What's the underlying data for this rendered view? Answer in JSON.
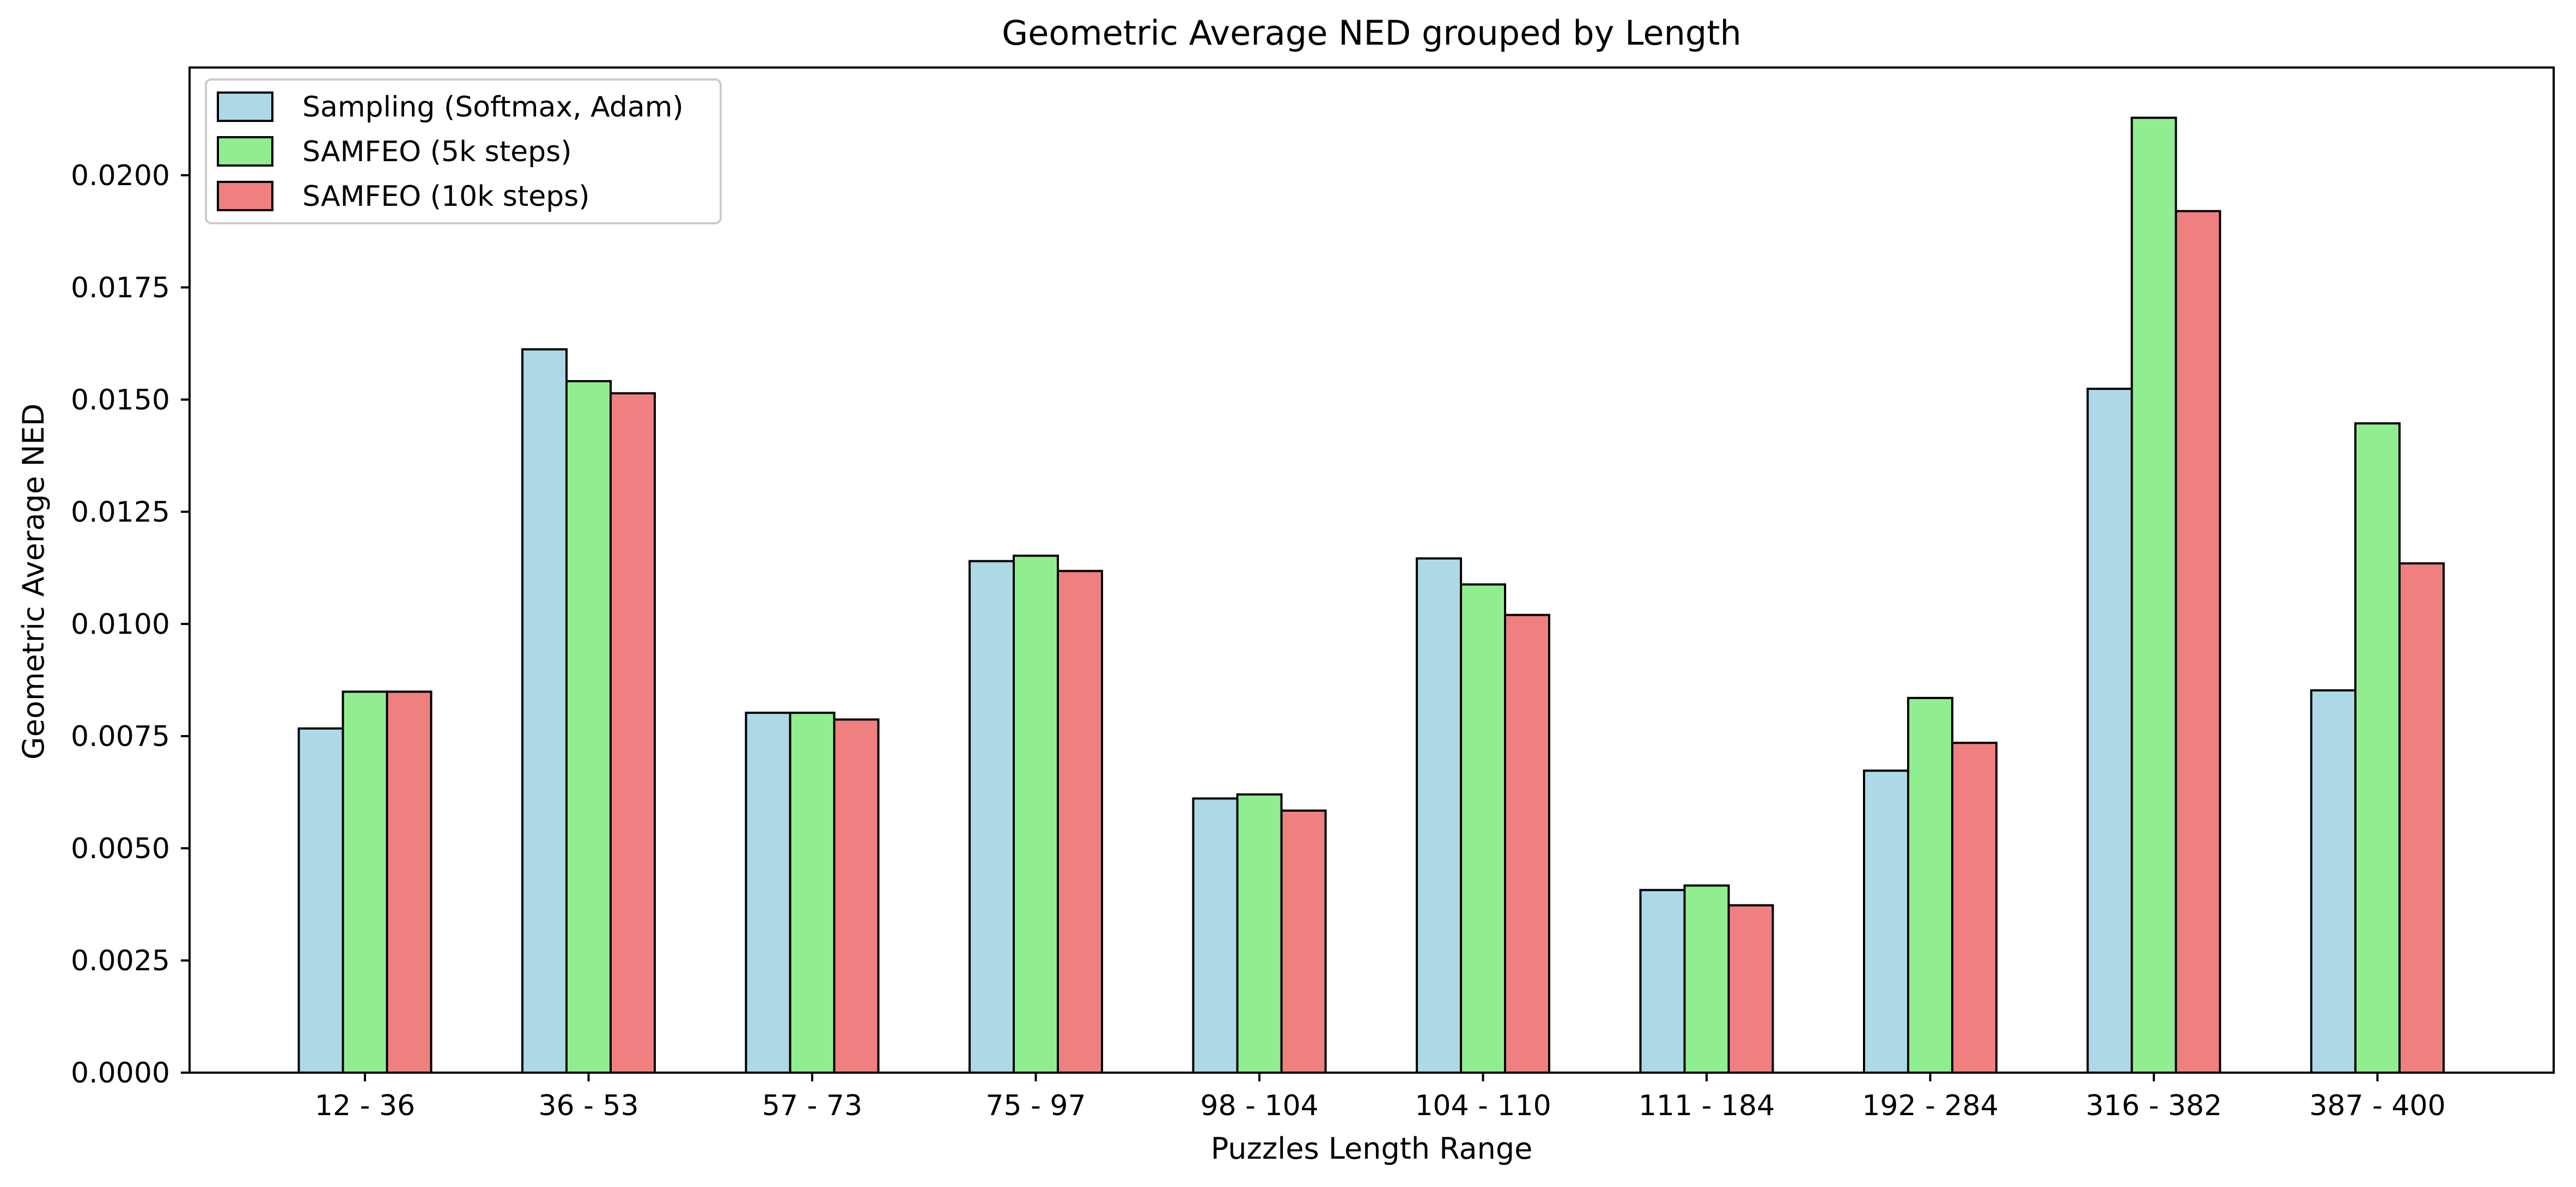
{
  "chart_data": {
    "type": "bar",
    "title": "Geometric Average NED grouped by Length",
    "xlabel": "Puzzles Length Range",
    "ylabel": "Geometric Average NED",
    "ylim": [
      0,
      0.0224
    ],
    "yticks": [
      "0.0000",
      "0.0025",
      "0.0050",
      "0.0075",
      "0.0100",
      "0.0125",
      "0.0150",
      "0.0175",
      "0.0200"
    ],
    "categories": [
      "12 - 36",
      "36 - 53",
      "57 - 73",
      "75 - 97",
      "98 - 104",
      "104 - 110",
      "111 - 184",
      "192 - 284",
      "316 - 382",
      "387 - 400"
    ],
    "series": [
      {
        "name": "Sampling (Softmax, Adam)",
        "color": "#add8e6",
        "values": [
          0.00767,
          0.01612,
          0.00802,
          0.0114,
          0.00611,
          0.01146,
          0.00407,
          0.00673,
          0.01524,
          0.00852
        ]
      },
      {
        "name": "SAMFEO (5k steps)",
        "color": "#90ee90",
        "values": [
          0.00849,
          0.01541,
          0.00802,
          0.01152,
          0.0062,
          0.01088,
          0.00417,
          0.00835,
          0.02128,
          0.01447
        ]
      },
      {
        "name": "SAMFEO (10k steps)",
        "color": "#f08080",
        "values": [
          0.00849,
          0.01514,
          0.00787,
          0.01118,
          0.00584,
          0.0102,
          0.00373,
          0.00735,
          0.0192,
          0.01135
        ]
      }
    ],
    "grid": false,
    "legend": "top-left"
  }
}
